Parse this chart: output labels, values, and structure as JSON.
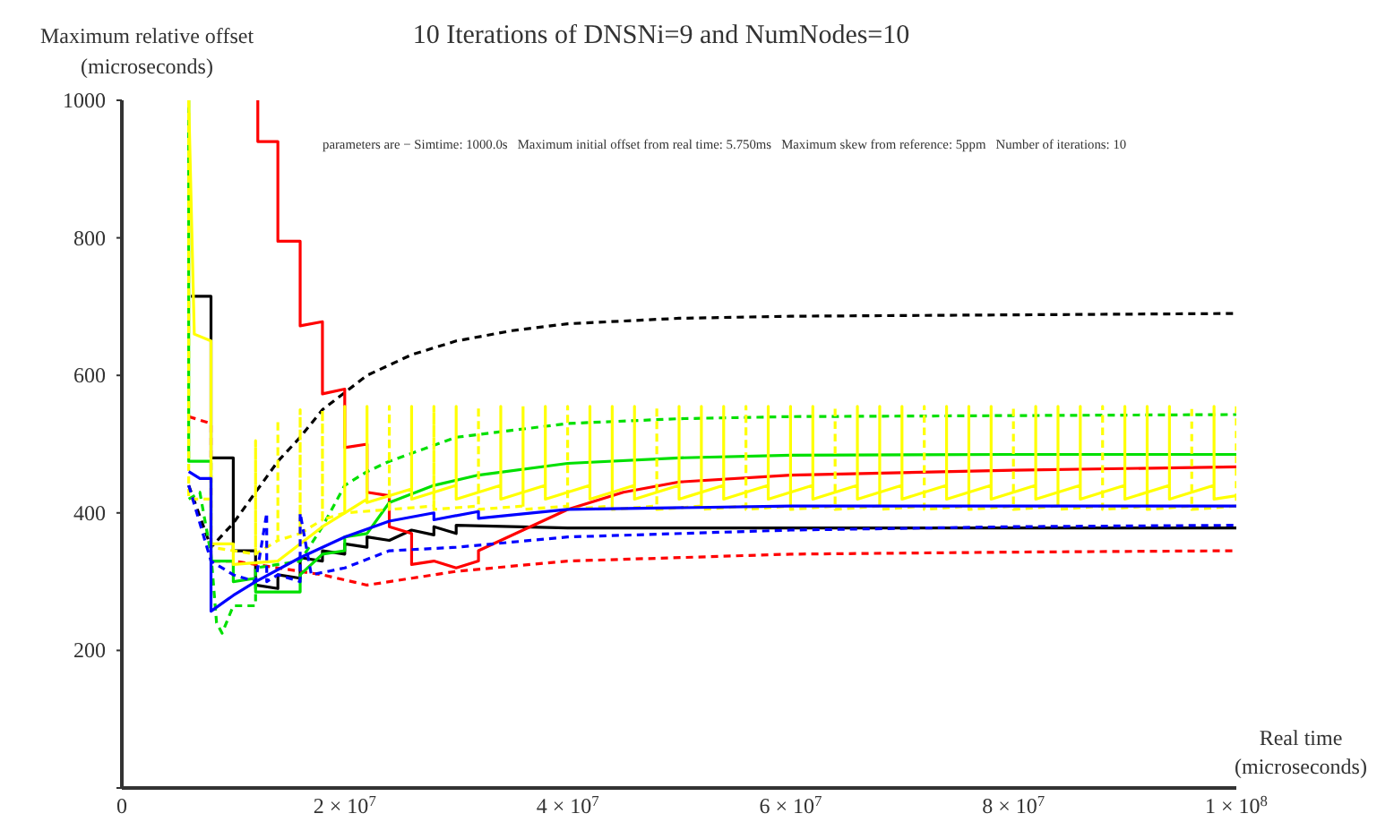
{
  "chart_data": {
    "type": "line",
    "title": "10 Iterations of DNSNi=9 and NumNodes=10",
    "xlabel": "Real time\n(microseconds)",
    "ylabel": "Maximum relative offset\n(microseconds)",
    "annotations": [
      "parameters are − Simtime: 1000.0s   Maximum initial offset from real time: 5.750ms   Maximum skew from reference: 5ppm   Number of iterations: 10"
    ],
    "xlim": [
      0,
      100000000
    ],
    "ylim": [
      0,
      1000
    ],
    "xticks": [
      0,
      {
        "value": 20000000,
        "label": "2 × 10$^{7}$"
      },
      {
        "value": 40000000,
        "label": "4 × 10$^{7}$"
      },
      {
        "value": 60000000,
        "label": "6 × 10$^{7}$"
      },
      {
        "value": 80000000,
        "label": "8 × 10$^{7}$"
      },
      {
        "value": 100000000,
        "label": "1 × 10$^{8}$"
      }
    ],
    "yticks": [
      {
        "value": 0,
        "label": null
      },
      200,
      400,
      600,
      800,
      1000
    ],
    "marker": "none",
    "series": [
      {
        "color": "#000000",
        "line_style": "solid",
        "x": [
          6200000,
          8000000,
          8000000,
          10000000,
          10000000,
          12000000,
          12000000,
          14000000,
          14000000,
          16000000,
          16000000,
          18000000,
          18000000,
          20000000,
          20000000,
          22000000,
          22000000,
          24000000,
          26000000,
          28000000,
          28000000,
          30000000,
          30000000,
          40000000,
          60000000,
          80000000,
          100000000
        ],
        "values": [
          715,
          715,
          480,
          480,
          345,
          345,
          295,
          290,
          310,
          305,
          335,
          330,
          345,
          340,
          355,
          350,
          365,
          360,
          375,
          368,
          380,
          370,
          382,
          378,
          378,
          378,
          378
        ]
      },
      {
        "color": "#000000",
        "line_style": "dashed",
        "x": [
          6000000,
          8000000,
          10000000,
          12000000,
          14000000,
          16000000,
          18000000,
          20000000,
          22000000,
          24000000,
          26000000,
          30000000,
          35000000,
          40000000,
          50000000,
          60000000,
          80000000,
          100000000
        ],
        "values": [
          440,
          350,
          385,
          430,
          475,
          510,
          550,
          575,
          600,
          615,
          630,
          650,
          665,
          675,
          683,
          686,
          688,
          690
        ]
      },
      {
        "color": "#ff0000",
        "line_style": "solid",
        "x": [
          12200000,
          12200000,
          14000000,
          14000000,
          16000000,
          16000000,
          18000000,
          18000000,
          20000000,
          20000000,
          22000000,
          22000000,
          24000000,
          24000000,
          26000000,
          26000000,
          28000000,
          30000000,
          32000000,
          32000000,
          34000000,
          36000000,
          40000000,
          45000000,
          50000000,
          60000000,
          80000000,
          100000000
        ],
        "values": [
          1000,
          940,
          940,
          795,
          795,
          672,
          678,
          573,
          580,
          495,
          500,
          430,
          425,
          380,
          370,
          325,
          330,
          320,
          330,
          345,
          360,
          375,
          405,
          430,
          445,
          455,
          462,
          467
        ]
      },
      {
        "color": "#ff0000",
        "line_style": "dashed",
        "x": [
          6000000,
          8000000,
          8000000,
          10000000,
          12000000,
          14000000,
          18000000,
          22000000,
          26000000,
          30000000,
          40000000,
          60000000,
          80000000,
          100000000
        ],
        "values": [
          540,
          530,
          330,
          330,
          325,
          320,
          310,
          295,
          305,
          315,
          330,
          340,
          343,
          345
        ]
      },
      {
        "color": "#00e000",
        "line_style": "solid",
        "x": [
          6000000,
          6000000,
          8000000,
          8000000,
          10000000,
          10000000,
          12000000,
          12000000,
          16000000,
          16000000,
          18000000,
          20000000,
          20000000,
          22000000,
          24000000,
          28000000,
          32000000,
          40000000,
          50000000,
          60000000,
          80000000,
          100000000
        ],
        "values": [
          1000,
          475,
          475,
          330,
          330,
          300,
          305,
          285,
          285,
          310,
          340,
          345,
          365,
          370,
          415,
          440,
          455,
          472,
          480,
          484,
          485,
          485
        ]
      },
      {
        "color": "#00e000",
        "line_style": "dashed",
        "x": [
          6000000,
          7000000,
          8000000,
          8500000,
          9000000,
          10000000,
          12000000,
          12000000,
          16000000,
          18000000,
          20000000,
          22000000,
          24000000,
          30000000,
          40000000,
          50000000,
          60000000,
          100000000
        ],
        "values": [
          420,
          430,
          340,
          240,
          225,
          265,
          265,
          320,
          330,
          380,
          440,
          460,
          475,
          510,
          530,
          537,
          540,
          543
        ]
      },
      {
        "color": "#ffff00",
        "line_style": "solid",
        "x": [
          6000000,
          6500000,
          8000000,
          8000000,
          10000000,
          10000000,
          14000000,
          18000000,
          20000000,
          22000000,
          22000000,
          22000000,
          26000000,
          26000000,
          26000000,
          30000000,
          30000000,
          30000000,
          34000000,
          34000000,
          34000000,
          38000000,
          38000000,
          38000000,
          42000000,
          42000000,
          42000000,
          46000000,
          46000000,
          46000000,
          50000000,
          50000000,
          50000000,
          54000000,
          54000000,
          54000000,
          58000000,
          58000000,
          58000000,
          62000000,
          62000000,
          62000000,
          66000000,
          66000000,
          66000000,
          70000000,
          70000000,
          70000000,
          74000000,
          74000000,
          74000000,
          78000000,
          78000000,
          78000000,
          82000000,
          82000000,
          82000000,
          86000000,
          86000000,
          86000000,
          90000000,
          90000000,
          90000000,
          94000000,
          94000000,
          94000000,
          98000000,
          98000000,
          98000000,
          100000000
        ],
        "values": [
          1000,
          660,
          650,
          355,
          355,
          325,
          330,
          380,
          400,
          420,
          555,
          415,
          435,
          555,
          420,
          440,
          555,
          420,
          440,
          555,
          420,
          440,
          555,
          420,
          440,
          555,
          420,
          440,
          555,
          420,
          440,
          555,
          420,
          440,
          555,
          420,
          440,
          555,
          420,
          440,
          555,
          420,
          440,
          555,
          420,
          440,
          555,
          420,
          440,
          555,
          420,
          440,
          555,
          420,
          440,
          555,
          420,
          440,
          555,
          420,
          440,
          555,
          420,
          440,
          555,
          420,
          440,
          555,
          420,
          425
        ]
      },
      {
        "color": "#ffff00",
        "line_style": "dashed",
        "x": [
          6000000,
          6000000,
          8000000,
          8000000,
          10000000,
          12000000,
          12000000,
          12000000,
          14000000,
          14000000,
          14000000,
          16000000,
          16000000,
          16000000,
          18000000,
          18000000,
          18000000,
          20000000,
          20000000,
          20000000,
          24000000,
          24000000,
          24000000,
          28000000,
          28000000,
          28000000,
          32000000,
          32000000,
          32000000,
          36000000,
          36000000,
          36000000,
          40000000,
          40000000,
          40000000,
          44000000,
          44000000,
          44000000,
          48000000,
          48000000,
          48000000,
          52000000,
          52000000,
          52000000,
          56000000,
          56000000,
          56000000,
          60000000,
          60000000,
          60000000,
          64000000,
          64000000,
          64000000,
          68000000,
          68000000,
          68000000,
          72000000,
          72000000,
          72000000,
          76000000,
          76000000,
          76000000,
          80000000,
          80000000,
          80000000,
          84000000,
          84000000,
          84000000,
          88000000,
          88000000,
          88000000,
          92000000,
          92000000,
          92000000,
          96000000,
          96000000,
          96000000,
          100000000,
          100000000
        ],
        "values": [
          1000,
          420,
          420,
          350,
          345,
          340,
          505,
          340,
          360,
          535,
          360,
          370,
          550,
          370,
          390,
          550,
          390,
          400,
          555,
          400,
          405,
          555,
          405,
          410,
          555,
          405,
          410,
          555,
          405,
          410,
          555,
          405,
          410,
          555,
          405,
          410,
          555,
          405,
          410,
          555,
          405,
          410,
          555,
          405,
          410,
          555,
          405,
          410,
          555,
          405,
          410,
          555,
          405,
          410,
          555,
          405,
          410,
          555,
          405,
          410,
          555,
          405,
          410,
          555,
          405,
          410,
          555,
          405,
          410,
          555,
          405,
          410,
          555,
          405,
          410,
          555,
          405,
          410,
          555
        ]
      },
      {
        "color": "#0000ff",
        "line_style": "solid",
        "x": [
          6000000,
          7000000,
          8000000,
          8000000,
          10000000,
          12000000,
          16000000,
          20000000,
          24000000,
          28000000,
          28000000,
          32000000,
          32000000,
          40000000,
          60000000,
          80000000,
          100000000
        ],
        "values": [
          460,
          450,
          450,
          257,
          280,
          300,
          335,
          365,
          388,
          400,
          390,
          402,
          392,
          405,
          410,
          410,
          410
        ]
      },
      {
        "color": "#0000ff",
        "line_style": "dashed",
        "x": [
          6000000,
          8000000,
          10000000,
          12000000,
          13000000,
          13000000,
          14000000,
          16000000,
          16000000,
          17000000,
          20000000,
          24000000,
          30000000,
          40000000,
          60000000,
          80000000,
          100000000
        ],
        "values": [
          440,
          330,
          310,
          300,
          400,
          300,
          310,
          300,
          400,
          310,
          320,
          345,
          350,
          365,
          375,
          380,
          382
        ]
      }
    ]
  }
}
